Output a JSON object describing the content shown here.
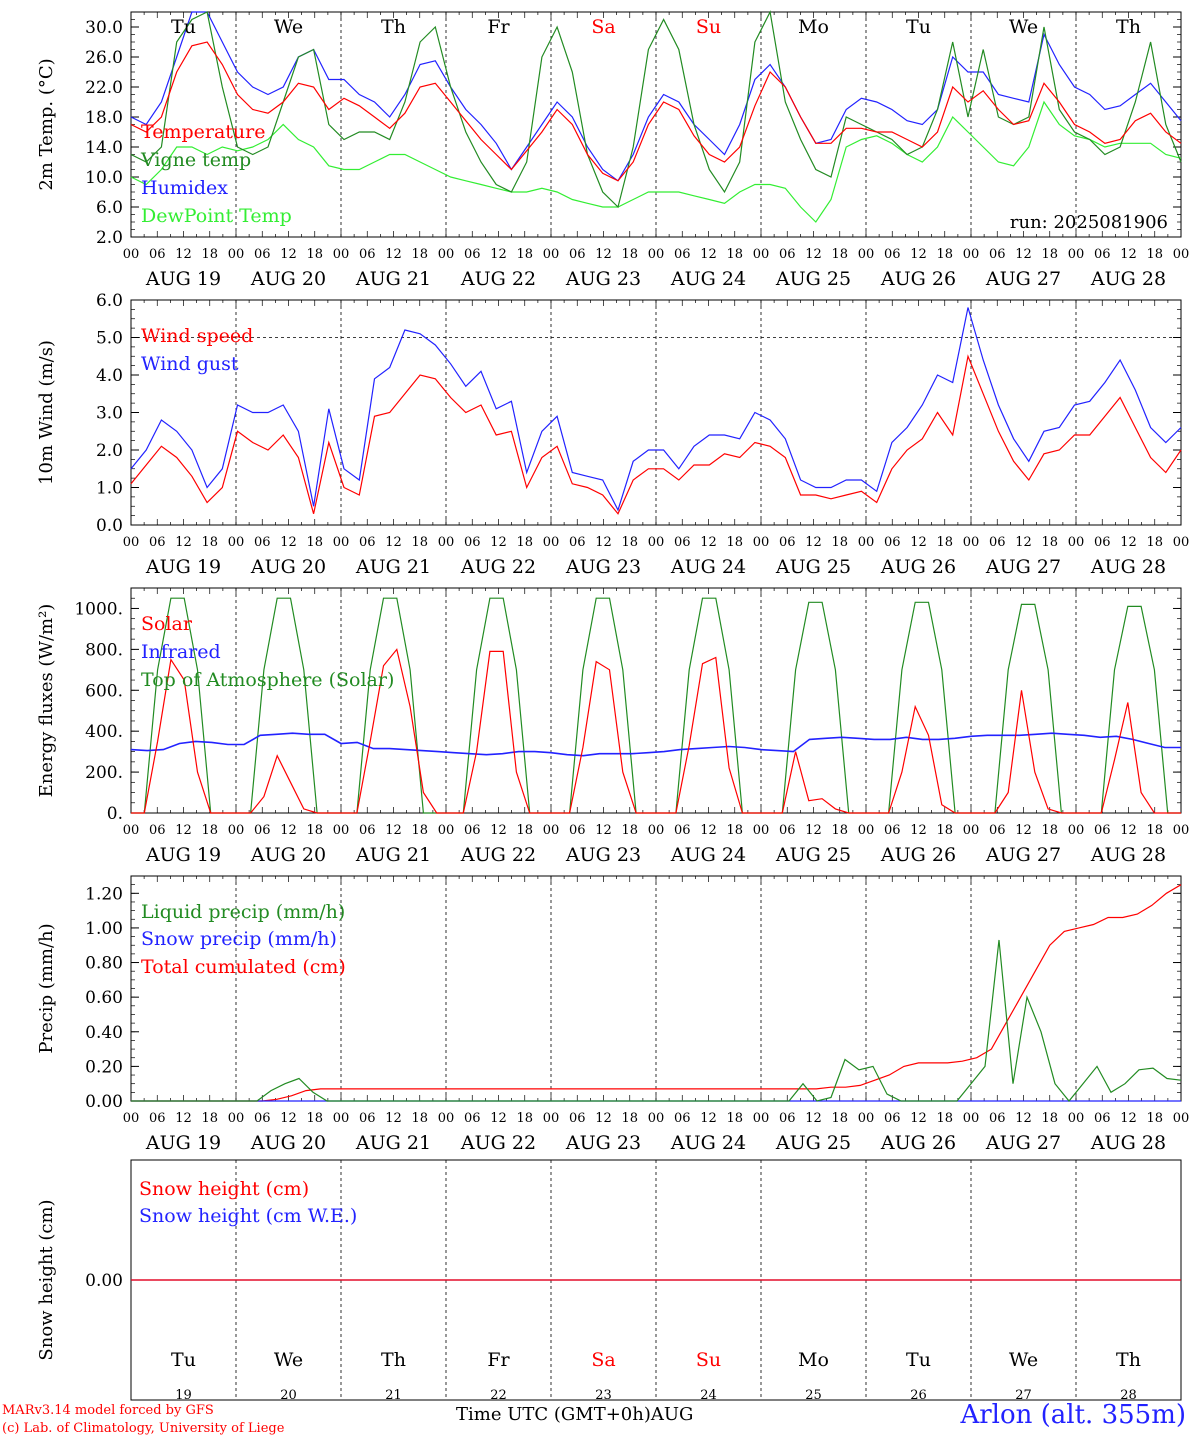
{
  "station": "Arlon (alt. 355m)",
  "footer": {
    "credit1": "MARv3.14 model forced by GFS",
    "credit2": "(c) Lab. of Climatology, University of Liege",
    "xaxis_label": "Time UTC (GMT+0h)",
    "month": "AUG"
  },
  "days": {
    "weekday_labels": [
      "Tu",
      "We",
      "Th",
      "Fr",
      "Sa",
      "Su",
      "Mo",
      "Tu",
      "We",
      "Th"
    ],
    "weekend_flags": [
      false,
      false,
      false,
      false,
      true,
      true,
      false,
      false,
      false,
      false
    ],
    "date_labels": [
      "AUG 19",
      "AUG 20",
      "AUG 21",
      "AUG 22",
      "AUG 23",
      "AUG 24",
      "AUG 25",
      "AUG 26",
      "AUG 27",
      "AUG 28"
    ],
    "day_numbers": [
      "19",
      "20",
      "21",
      "22",
      "23",
      "24",
      "25",
      "26",
      "27",
      "28"
    ],
    "hour_ticks": [
      "00",
      "06",
      "12",
      "18"
    ],
    "end_tick": "00"
  },
  "colors": {
    "red": "#ff0000",
    "green": "#228b22",
    "blue": "#2222ff",
    "lightgreen": "#33ee33",
    "weekend": "#ff0000"
  },
  "chart_data": [
    {
      "type": "line",
      "ylabel": "2m Temp. (°C)",
      "ylim": [
        2,
        32
      ],
      "yticks": [
        "2.0",
        "6.0",
        "10.0",
        "14.0",
        "18.0",
        "22.0",
        "26.0",
        "30.0"
      ],
      "run_label": "run: 2025081906",
      "x_unit": "hours since AUG 19 00 UTC, 3-hourly",
      "series": [
        {
          "name": "Temperature",
          "color": "red",
          "values": [
            17,
            16,
            18,
            24,
            27.5,
            28,
            25,
            21,
            19,
            18.5,
            20,
            22.5,
            22,
            19,
            20.5,
            19.5,
            18,
            16.5,
            18.5,
            22,
            22.5,
            20,
            17.5,
            15,
            13,
            11,
            13.5,
            16,
            19,
            17,
            13,
            10.5,
            9.5,
            12,
            17,
            20,
            19,
            15.5,
            13,
            12,
            14,
            19.5,
            24,
            22,
            18,
            14.5,
            14.5,
            16.5,
            16.5,
            16,
            16,
            15,
            14,
            16,
            22,
            20,
            21.5,
            19,
            17,
            17.5,
            22.5,
            20,
            17,
            16,
            14.5,
            15,
            17.5,
            18.5,
            16,
            14.5
          ]
        },
        {
          "name": "Vigne temp",
          "color": "green",
          "values": [
            13,
            12,
            14,
            28,
            31,
            32,
            22,
            14,
            13,
            14,
            20,
            26,
            27,
            17,
            15,
            16,
            16,
            15,
            20,
            28,
            30,
            22,
            16,
            12,
            9,
            8,
            12,
            26,
            30,
            24,
            13,
            8,
            6,
            14,
            27,
            31,
            27,
            17,
            11,
            8,
            12,
            28,
            33,
            20,
            15,
            11,
            10,
            18,
            17,
            16,
            15,
            13,
            14,
            19,
            28,
            18,
            27,
            18,
            17,
            18,
            30,
            19,
            16,
            15,
            13,
            14,
            20,
            28,
            17,
            12
          ]
        },
        {
          "name": "Humidex",
          "color": "blue",
          "values": [
            18,
            17,
            20,
            26,
            32,
            32,
            28,
            24,
            22,
            21,
            22,
            26,
            27,
            23,
            23,
            21,
            20,
            18,
            21,
            25,
            25.5,
            22,
            19,
            17,
            14.5,
            11,
            14,
            17,
            20,
            18,
            14,
            11,
            9.5,
            13,
            18,
            21,
            20,
            17,
            15,
            13,
            17,
            23,
            25,
            22,
            18,
            14.5,
            15,
            19,
            20.5,
            20,
            19,
            17.5,
            17,
            19,
            26,
            24,
            24,
            21,
            20.5,
            20,
            29,
            25,
            22,
            21,
            19,
            19.5,
            21,
            22.5,
            20,
            17.5
          ]
        },
        {
          "name": "DewPoint Temp",
          "color": "lightgreen",
          "values": [
            10,
            9,
            11,
            14,
            14,
            13,
            14,
            13.5,
            14,
            15,
            17,
            15,
            14,
            11.5,
            11,
            11,
            12,
            13,
            13,
            12,
            11,
            10,
            9.5,
            9,
            8.5,
            8,
            8,
            8.5,
            8,
            7,
            6.5,
            6,
            6,
            7,
            8,
            8,
            8,
            7.5,
            7,
            6.5,
            8,
            9,
            9,
            8.5,
            6,
            4,
            7,
            14,
            15,
            15.5,
            14.5,
            13,
            12,
            14,
            18,
            16,
            14,
            12,
            11.5,
            14,
            20,
            17,
            15.5,
            15,
            14,
            14.5,
            14.5,
            14.5,
            13,
            12.5
          ]
        }
      ]
    },
    {
      "type": "line",
      "ylabel": "10m Wind (m/s)",
      "ylim": [
        0,
        6
      ],
      "yticks": [
        "0.0",
        "1.0",
        "2.0",
        "3.0",
        "4.0",
        "5.0",
        "6.0"
      ],
      "ref_line": 5,
      "x_unit": "hours since AUG 19 00 UTC, 3-hourly",
      "series": [
        {
          "name": "Wind speed",
          "color": "red",
          "values": [
            1.1,
            1.6,
            2.1,
            1.8,
            1.3,
            0.6,
            1.0,
            2.5,
            2.2,
            2.0,
            2.4,
            1.8,
            0.3,
            2.2,
            1.0,
            0.8,
            2.9,
            3.0,
            3.5,
            4.0,
            3.9,
            3.4,
            3.0,
            3.2,
            2.4,
            2.5,
            1.0,
            1.8,
            2.1,
            1.1,
            1.0,
            0.8,
            0.3,
            1.2,
            1.5,
            1.5,
            1.2,
            1.6,
            1.6,
            1.9,
            1.8,
            2.2,
            2.1,
            1.8,
            0.8,
            0.8,
            0.7,
            0.8,
            0.9,
            0.6,
            1.5,
            2.0,
            2.3,
            3.0,
            2.4,
            4.5,
            3.5,
            2.5,
            1.7,
            1.2,
            1.9,
            2.0,
            2.4,
            2.4,
            2.9,
            3.4,
            2.6,
            1.8,
            1.4,
            2.0
          ]
        },
        {
          "name": "Wind gust",
          "color": "blue",
          "values": [
            1.5,
            2.0,
            2.8,
            2.5,
            2.0,
            1.0,
            1.5,
            3.2,
            3.0,
            3.0,
            3.2,
            2.5,
            0.5,
            3.1,
            1.5,
            1.2,
            3.9,
            4.2,
            5.2,
            5.1,
            4.8,
            4.3,
            3.7,
            4.1,
            3.1,
            3.3,
            1.4,
            2.5,
            2.9,
            1.4,
            1.3,
            1.2,
            0.4,
            1.7,
            2.0,
            2.0,
            1.5,
            2.1,
            2.4,
            2.4,
            2.3,
            3.0,
            2.8,
            2.3,
            1.2,
            1.0,
            1.0,
            1.2,
            1.2,
            0.9,
            2.2,
            2.6,
            3.2,
            4.0,
            3.8,
            5.8,
            4.4,
            3.2,
            2.3,
            1.7,
            2.5,
            2.6,
            3.2,
            3.3,
            3.8,
            4.4,
            3.6,
            2.6,
            2.2,
            2.6
          ]
        }
      ]
    },
    {
      "type": "line",
      "ylabel": "Energy fluxes (W/m²)",
      "ylim": [
        0,
        1100
      ],
      "yticks": [
        "0.",
        "200.",
        "400.",
        "600.",
        "800.",
        "1000."
      ],
      "x_unit": "hours since AUG 19 00 UTC, 3-hourly",
      "series": [
        {
          "name": "Solar",
          "color": "red",
          "values": [
            0,
            0,
            350,
            750,
            650,
            200,
            0,
            0,
            0,
            0,
            80,
            280,
            150,
            20,
            0,
            0,
            0,
            0,
            350,
            720,
            800,
            520,
            100,
            0,
            0,
            0,
            300,
            790,
            790,
            200,
            0,
            0,
            0,
            0,
            320,
            740,
            700,
            200,
            0,
            0,
            0,
            0,
            330,
            730,
            760,
            220,
            0,
            0,
            0,
            0,
            300,
            60,
            70,
            20,
            0,
            0,
            0,
            0,
            200,
            520,
            380,
            40,
            0,
            0,
            0,
            0,
            100,
            600,
            200,
            20,
            0,
            0,
            0,
            0,
            260,
            540,
            100,
            0,
            0,
            0
          ]
        },
        {
          "name": "Infrared",
          "color": "blue",
          "values": [
            310,
            305,
            310,
            340,
            350,
            345,
            335,
            335,
            380,
            385,
            390,
            385,
            385,
            340,
            345,
            315,
            315,
            310,
            305,
            300,
            295,
            290,
            285,
            290,
            300,
            300,
            295,
            285,
            280,
            290,
            290,
            290,
            295,
            300,
            310,
            315,
            320,
            325,
            320,
            310,
            305,
            300,
            360,
            365,
            370,
            365,
            360,
            360,
            370,
            360,
            360,
            365,
            375,
            380,
            380,
            380,
            385,
            390,
            385,
            380,
            370,
            375,
            360,
            340,
            320,
            320
          ]
        },
        {
          "name": "Top of Atmosphere (Solar)",
          "color": "green",
          "values": [
            0,
            0,
            700,
            1050,
            1050,
            700,
            0,
            0,
            0,
            0,
            700,
            1050,
            1050,
            700,
            0,
            0,
            0,
            0,
            700,
            1050,
            1050,
            700,
            0,
            0,
            0,
            0,
            700,
            1050,
            1050,
            700,
            0,
            0,
            0,
            0,
            700,
            1050,
            1050,
            700,
            0,
            0,
            0,
            0,
            700,
            1050,
            1050,
            700,
            0,
            0,
            0,
            0,
            700,
            1030,
            1030,
            700,
            0,
            0,
            0,
            0,
            700,
            1030,
            1030,
            700,
            0,
            0,
            0,
            0,
            700,
            1020,
            1020,
            700,
            0,
            0,
            0,
            0,
            700,
            1010,
            1010,
            700,
            0,
            0
          ]
        }
      ]
    },
    {
      "type": "line",
      "ylabel": "Precip (mm/h)",
      "ylim": [
        0,
        1.3
      ],
      "yticks": [
        "0.00",
        "0.20",
        "0.40",
        "0.60",
        "0.80",
        "1.00",
        "1.20"
      ],
      "x_unit": "hours since AUG 19 00 UTC, 3-hourly",
      "series": [
        {
          "name": "Liquid precip (mm/h)",
          "color": "green",
          "values": [
            0,
            0,
            0,
            0,
            0,
            0,
            0,
            0,
            0,
            0,
            0.06,
            0.1,
            0.13,
            0.05,
            0,
            0,
            0,
            0,
            0,
            0,
            0,
            0,
            0,
            0,
            0,
            0,
            0,
            0,
            0,
            0,
            0,
            0,
            0,
            0,
            0,
            0,
            0,
            0,
            0,
            0,
            0,
            0,
            0,
            0,
            0,
            0,
            0,
            0,
            0.1,
            0,
            0.02,
            0.24,
            0.18,
            0.2,
            0.04,
            0,
            0,
            0,
            0,
            0,
            0.1,
            0.2,
            0.93,
            0.1,
            0.6,
            0.4,
            0.1,
            0,
            0.1,
            0.2,
            0.05,
            0.1,
            0.18,
            0.19,
            0.13,
            0.12
          ]
        },
        {
          "name": "Snow precip (mm/h)",
          "color": "blue",
          "values": [
            0,
            0,
            0,
            0,
            0,
            0,
            0,
            0,
            0,
            0,
            0,
            0,
            0,
            0,
            0,
            0,
            0,
            0,
            0,
            0,
            0,
            0,
            0,
            0,
            0,
            0,
            0,
            0,
            0,
            0,
            0,
            0,
            0,
            0,
            0,
            0,
            0,
            0,
            0,
            0,
            0,
            0,
            0,
            0,
            0,
            0,
            0,
            0,
            0,
            0,
            0,
            0,
            0,
            0,
            0,
            0,
            0,
            0,
            0,
            0,
            0,
            0,
            0,
            0,
            0,
            0,
            0,
            0,
            0,
            0,
            0,
            0,
            0,
            0,
            0,
            0
          ]
        },
        {
          "name": "Total cumulated (cm)",
          "color": "red",
          "values": [
            0,
            0,
            0,
            0,
            0,
            0,
            0,
            0,
            0,
            0,
            0.01,
            0.03,
            0.06,
            0.07,
            0.07,
            0.07,
            0.07,
            0.07,
            0.07,
            0.07,
            0.07,
            0.07,
            0.07,
            0.07,
            0.07,
            0.07,
            0.07,
            0.07,
            0.07,
            0.07,
            0.07,
            0.07,
            0.07,
            0.07,
            0.07,
            0.07,
            0.07,
            0.07,
            0.07,
            0.07,
            0.07,
            0.07,
            0.07,
            0.07,
            0.07,
            0.07,
            0.07,
            0.07,
            0.08,
            0.08,
            0.09,
            0.12,
            0.15,
            0.2,
            0.22,
            0.22,
            0.22,
            0.23,
            0.25,
            0.3,
            0.45,
            0.6,
            0.75,
            0.9,
            0.98,
            1.0,
            1.02,
            1.06,
            1.06,
            1.08,
            1.13,
            1.2,
            1.25
          ]
        }
      ]
    },
    {
      "type": "line",
      "ylabel": "Snow height (cm)",
      "ylim": [
        -1,
        1
      ],
      "yticks": [
        "0.00"
      ],
      "x_unit": "hours since AUG 19 00 UTC, 3-hourly",
      "series": [
        {
          "name": "Snow height (cm)",
          "color": "red",
          "values": [
            0,
            0
          ]
        },
        {
          "name": "Snow height (cm W.E.)",
          "color": "blue",
          "values": [
            0,
            0
          ]
        }
      ]
    }
  ]
}
